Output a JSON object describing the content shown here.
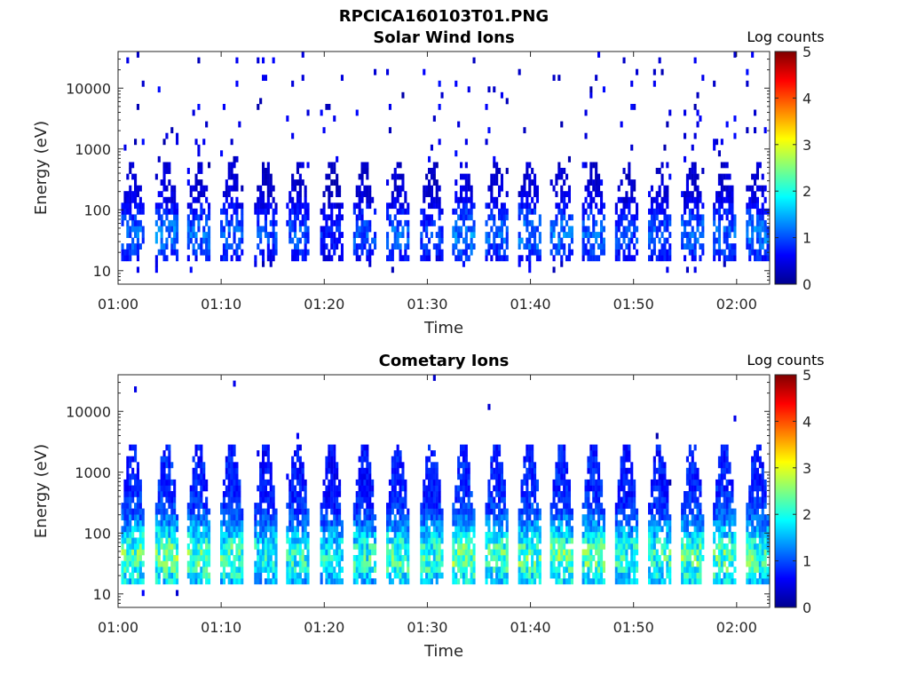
{
  "figure_title": "RPCICA160103T01.PNG",
  "colorbar": {
    "label": "Log counts",
    "ticks": [
      "0",
      "1",
      "2",
      "3",
      "4",
      "5"
    ],
    "range": [
      0,
      5
    ],
    "colormap": "jet"
  },
  "chart_data": [
    {
      "type": "heatmap",
      "title": "Solar Wind Ions",
      "xlabel": "Time",
      "ylabel": "Energy (eV)",
      "x_ticks": [
        "01:00",
        "01:10",
        "01:20",
        "01:30",
        "01:40",
        "01:50",
        "02:00"
      ],
      "y_ticks": [
        "10",
        "100",
        "1000",
        "10000"
      ],
      "y_scale": "log",
      "xlim_minutes": [
        60,
        123.2
      ],
      "ylim": [
        6,
        40000
      ],
      "scan_start_minutes": [
        60.3,
        63.6,
        66.7,
        69.9,
        73.2,
        76.3,
        79.6,
        82.8,
        86.0,
        89.3,
        92.4,
        95.6,
        98.8,
        101.9,
        105.0,
        108.2,
        111.4,
        114.6,
        117.7,
        120.9
      ],
      "scan_peak_log_counts": [
        1.4,
        1.5,
        1.4,
        1.4,
        1.2,
        1.3,
        1.0,
        1.3,
        1.4,
        1.2,
        1.6,
        1.4,
        1.5,
        1.5,
        1.4,
        1.2,
        1.3,
        1.4,
        1.4,
        1.5
      ]
    },
    {
      "type": "heatmap",
      "title": "Cometary Ions",
      "xlabel": "Time",
      "ylabel": "Energy (eV)",
      "x_ticks": [
        "01:00",
        "01:10",
        "01:20",
        "01:30",
        "01:40",
        "01:50",
        "02:00"
      ],
      "y_ticks": [
        "10",
        "100",
        "1000",
        "10000"
      ],
      "y_scale": "log",
      "xlim_minutes": [
        60,
        123.2
      ],
      "ylim": [
        6,
        40000
      ],
      "scan_start_minutes": [
        60.3,
        63.6,
        66.7,
        69.9,
        73.2,
        76.3,
        79.6,
        82.8,
        86.0,
        89.3,
        92.4,
        95.6,
        98.8,
        101.9,
        105.0,
        108.2,
        111.4,
        114.6,
        117.7,
        120.9
      ],
      "scan_peak_log_counts": [
        2.9,
        3.0,
        2.9,
        2.8,
        2.5,
        2.6,
        2.4,
        2.6,
        2.8,
        2.7,
        3.0,
        2.8,
        2.9,
        3.0,
        2.9,
        2.6,
        2.7,
        2.9,
        2.9,
        2.8
      ]
    }
  ]
}
